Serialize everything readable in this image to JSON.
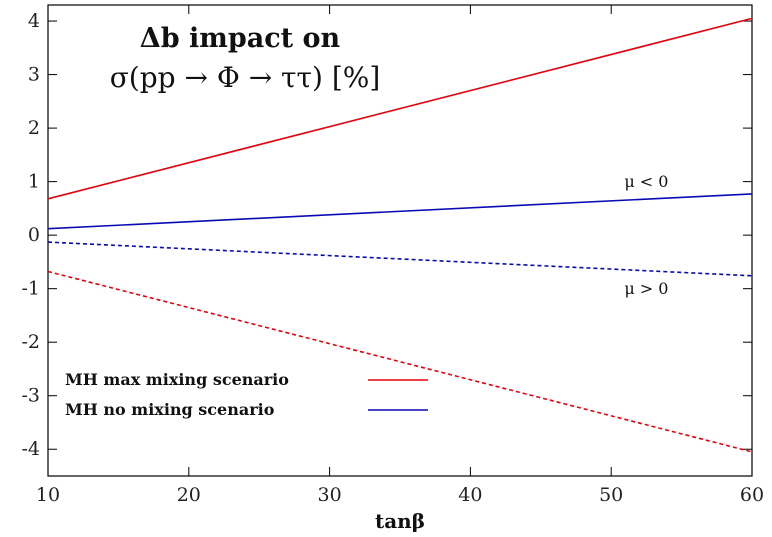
{
  "chart_data": {
    "type": "line",
    "title_line1": "Δb impact on",
    "title_line2": "σ(pp → Φ → ττ) [%]",
    "xlabel": "tanβ",
    "ylabel": "",
    "xlim": [
      10,
      60
    ],
    "ylim": [
      -4.5,
      4.3
    ],
    "xticks": [
      10,
      20,
      30,
      40,
      50,
      60
    ],
    "yticks": [
      -4,
      -3,
      -2,
      -1,
      0,
      1,
      2,
      3,
      4
    ],
    "grid": false,
    "series": [
      {
        "name": "MH max mixing scenario",
        "sign": "μ < 0",
        "color": "#e8000b",
        "dash": false,
        "x": [
          10,
          60
        ],
        "y": [
          0.68,
          4.05
        ]
      },
      {
        "name": "MH max mixing scenario",
        "sign": "μ > 0",
        "color": "#e8000b",
        "dash": true,
        "x": [
          10,
          60
        ],
        "y": [
          -0.68,
          -4.05
        ]
      },
      {
        "name": "MH no mixing scenario",
        "sign": "μ < 0",
        "color": "#0a0ab4",
        "dash": false,
        "x": [
          10,
          60
        ],
        "y": [
          0.12,
          0.77
        ]
      },
      {
        "name": "MH no mixing scenario",
        "sign": "μ > 0",
        "color": "#0a0ab4",
        "dash": true,
        "x": [
          10,
          60
        ],
        "y": [
          -0.13,
          -0.76
        ]
      }
    ],
    "legend": [
      {
        "label": "MH max mixing scenario",
        "color": "#e8000b"
      },
      {
        "label": "MH no mixing scenario",
        "color": "#0a0ab4"
      }
    ],
    "annotations": [
      {
        "text": "μ < 0",
        "x": 52.5,
        "y": 0.9
      },
      {
        "text": "μ > 0",
        "x": 52.5,
        "y": -1.1
      }
    ]
  }
}
